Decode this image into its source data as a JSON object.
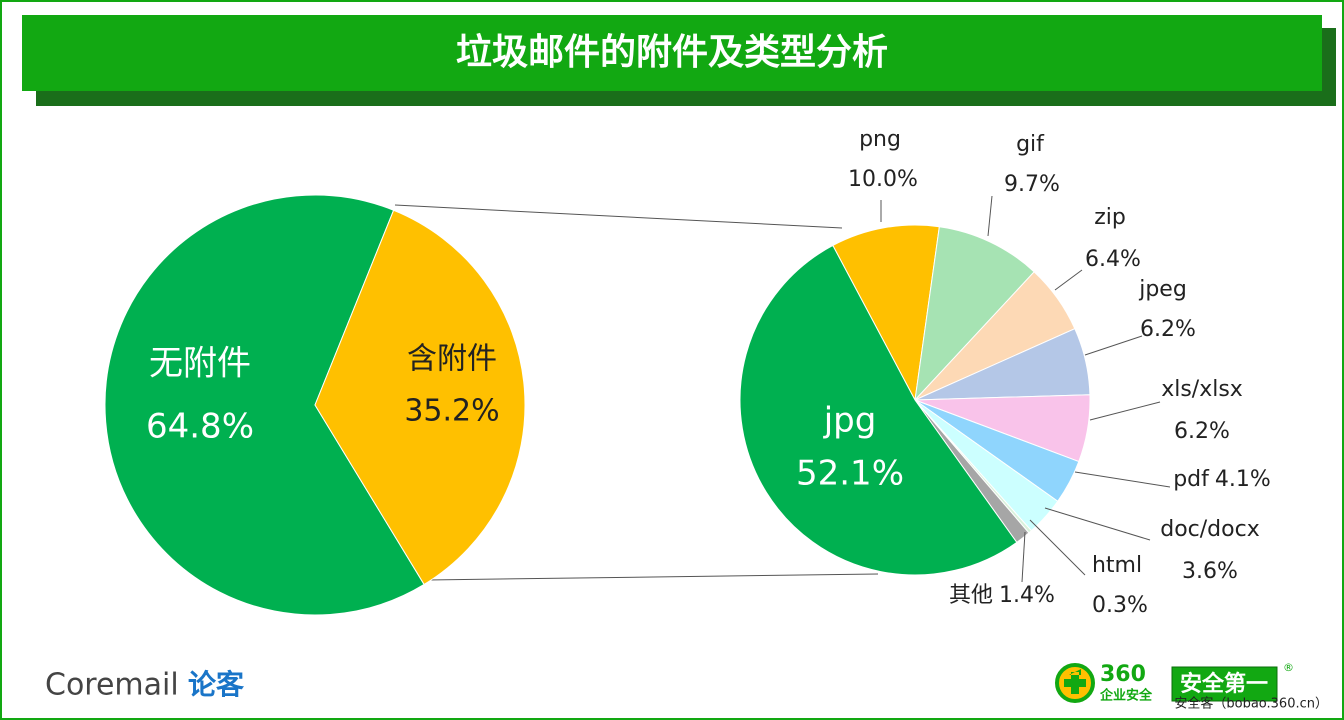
{
  "title": "垃圾邮件的附件及类型分析",
  "chart_data": [
    {
      "type": "pie",
      "categories": [
        "无附件",
        "含附件"
      ],
      "values": [
        64.8,
        35.2
      ],
      "value_labels": [
        "64.8%",
        "35.2%"
      ],
      "colors": [
        "#00b050",
        "#ffc000"
      ]
    },
    {
      "type": "pie",
      "categories": [
        "png",
        "gif",
        "zip",
        "jpeg",
        "xls/xlsx",
        "pdf",
        "doc/docx",
        "html",
        "其他",
        "jpg"
      ],
      "values": [
        10.0,
        9.7,
        6.4,
        6.2,
        6.2,
        4.1,
        3.6,
        0.3,
        1.4,
        52.1
      ],
      "value_labels": [
        "10.0%",
        "9.7%",
        "6.4%",
        "6.2%",
        "6.2%",
        "4.1%",
        "3.6%",
        "0.3%",
        "1.4%",
        "52.1%"
      ],
      "colors": [
        "#ffc000",
        "#a6e3b3",
        "#fdd9b5",
        "#b4c7e7",
        "#f9c3ea",
        "#8fd5fd",
        "#ccffff",
        "#d9f2dc",
        "#a6a6a6",
        "#00b050"
      ]
    }
  ],
  "footer": {
    "brand": "Coremail",
    "brand_cn": "论客",
    "logo_num": "360",
    "logo_sub": "企业安全",
    "badge": "安全第一",
    "reg": "®",
    "source": "安全客（bobao.360.cn）"
  }
}
